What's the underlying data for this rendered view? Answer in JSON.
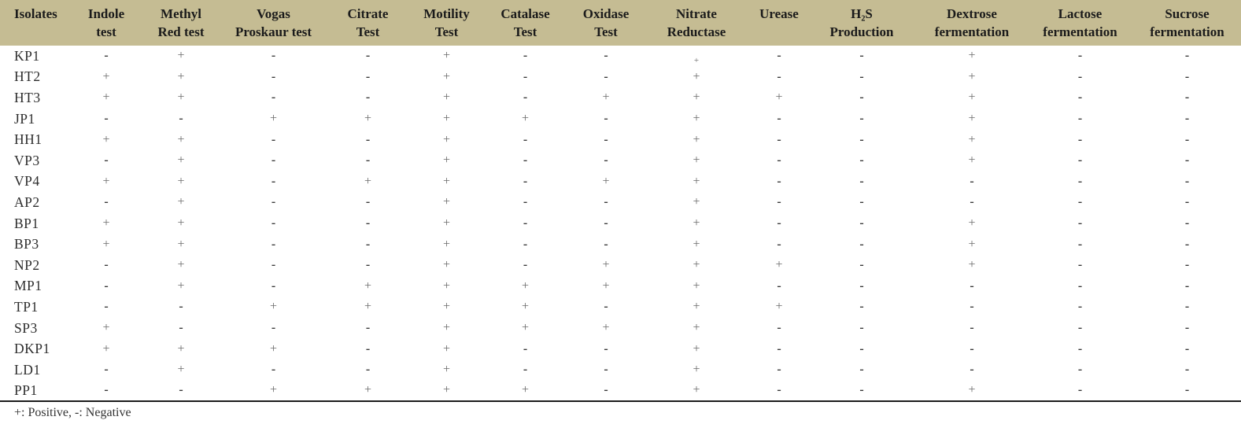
{
  "table": {
    "columns": [
      {
        "id": "isolates",
        "label": "Isolates"
      },
      {
        "id": "indole",
        "label": "Indole\ntest"
      },
      {
        "id": "methyl-red",
        "label": "Methyl\nRed test"
      },
      {
        "id": "voges-proskauer",
        "label": "Vogas\nProskaur test"
      },
      {
        "id": "citrate",
        "label": "Citrate\nTest"
      },
      {
        "id": "motility",
        "label": "Motility\nTest"
      },
      {
        "id": "catalase",
        "label": "Catalase\nTest"
      },
      {
        "id": "oxidase",
        "label": "Oxidase\nTest"
      },
      {
        "id": "nitrate-reductase",
        "label": "Nitrate\nReductase"
      },
      {
        "id": "urease",
        "label": "Urease"
      },
      {
        "id": "h2s-production",
        "label": "H₂S\nProduction"
      },
      {
        "id": "dextrose",
        "label": "Dextrose\nfermentation"
      },
      {
        "id": "lactose",
        "label": "Lactose\nfermentation"
      },
      {
        "id": "sucrose",
        "label": "Sucrose\nfermentation"
      }
    ],
    "rows": [
      {
        "isolate": "KP1",
        "results": [
          "-",
          "+",
          "-",
          "-",
          "+",
          "-",
          "-",
          "+",
          "-",
          "-",
          "+",
          "-",
          "-"
        ]
      },
      {
        "isolate": "HT2",
        "results": [
          "+",
          "+",
          "-",
          "-",
          "+",
          "-",
          "-",
          "+",
          "-",
          "-",
          "+",
          "-",
          "-"
        ]
      },
      {
        "isolate": "HT3",
        "results": [
          "+",
          "+",
          "-",
          "-",
          "+",
          "-",
          "+",
          "+",
          "+",
          "-",
          "+",
          "-",
          "-"
        ]
      },
      {
        "isolate": "JP1",
        "results": [
          "-",
          "-",
          "+",
          "+",
          "+",
          "+",
          "-",
          "+",
          "-",
          "-",
          "+",
          "-",
          "-"
        ]
      },
      {
        "isolate": "HH1",
        "results": [
          "+",
          "+",
          "-",
          "-",
          "+",
          "-",
          "-",
          "+",
          "-",
          "-",
          "+",
          "-",
          "-"
        ]
      },
      {
        "isolate": "VP3",
        "results": [
          "-",
          "+",
          "-",
          "-",
          "+",
          "-",
          "-",
          "+",
          "-",
          "-",
          "+",
          "-",
          "-"
        ]
      },
      {
        "isolate": "VP4",
        "results": [
          "+",
          "+",
          "-",
          "+",
          "+",
          "-",
          "+",
          "+",
          "-",
          "-",
          "-",
          "-",
          "-"
        ]
      },
      {
        "isolate": "AP2",
        "results": [
          "-",
          "+",
          "-",
          "-",
          "+",
          "-",
          "-",
          "+",
          "-",
          "-",
          "-",
          "-",
          "-"
        ]
      },
      {
        "isolate": "BP1",
        "results": [
          "+",
          "+",
          "-",
          "-",
          "+",
          "-",
          "-",
          "+",
          "-",
          "-",
          "+",
          "-",
          "-"
        ]
      },
      {
        "isolate": "BP3",
        "results": [
          "+",
          "+",
          "-",
          "-",
          "+",
          "-",
          "-",
          "+",
          "-",
          "-",
          "+",
          "-",
          "-"
        ]
      },
      {
        "isolate": "NP2",
        "results": [
          "-",
          "+",
          "-",
          "-",
          "+",
          "-",
          "+",
          "+",
          "+",
          "-",
          "+",
          "-",
          "-"
        ]
      },
      {
        "isolate": "MP1",
        "results": [
          "-",
          "+",
          "-",
          "+",
          "+",
          "+",
          "+",
          "+",
          "-",
          "-",
          "-",
          "-",
          "-"
        ]
      },
      {
        "isolate": "TP1",
        "results": [
          "-",
          "-",
          "+",
          "+",
          "+",
          "+",
          "-",
          "+",
          "+",
          "-",
          "-",
          "-",
          "-"
        ]
      },
      {
        "isolate": "SP3",
        "results": [
          "+",
          "-",
          "-",
          "-",
          "+",
          "+",
          "+",
          "+",
          "-",
          "-",
          "-",
          "-",
          "-"
        ]
      },
      {
        "isolate": "DKP1",
        "results": [
          "+",
          "+",
          "+",
          "-",
          "+",
          "-",
          "-",
          "+",
          "-",
          "-",
          "-",
          "-",
          "-"
        ]
      },
      {
        "isolate": "LD1",
        "results": [
          "-",
          "+",
          "-",
          "-",
          "+",
          "-",
          "-",
          "+",
          "-",
          "-",
          "-",
          "-",
          "-"
        ]
      },
      {
        "isolate": "PP1",
        "results": [
          "-",
          "-",
          "+",
          "+",
          "+",
          "+",
          "-",
          "+",
          "-",
          "-",
          "+",
          "-",
          "-"
        ]
      }
    ]
  },
  "legend": {
    "positive_symbol": "+",
    "negative_symbol": "-",
    "footnote": "+: Positive, -: Negative"
  },
  "colors": {
    "header_background": "#c5bc93",
    "header_text": "#1b1b1b",
    "positive_symbol": "#6b6b6b",
    "negative_symbol": "#383838",
    "bottom_rule": "#1c1c1c"
  }
}
